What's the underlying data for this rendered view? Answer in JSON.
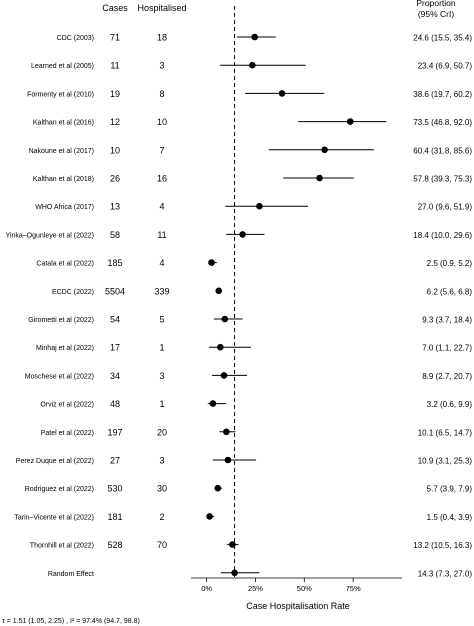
{
  "chart_data": {
    "type": "forest",
    "header": {
      "cases": "Cases",
      "hospitalised": "Hospitalised",
      "proportion_line1": "Proportion",
      "proportion_line2": "(95% CrI)"
    },
    "rows": [
      {
        "study": "CDC (2003)",
        "cases": "71",
        "hosp": "18",
        "est": 24.6,
        "lo": 15.5,
        "hi": 35.4,
        "label": "24.6 (15.5, 35.4)"
      },
      {
        "study": "Learned et al (2005)",
        "cases": "11",
        "hosp": "3",
        "est": 23.4,
        "lo": 6.9,
        "hi": 50.7,
        "label": "23.4 (6.9, 50.7)"
      },
      {
        "study": "Formenty et al (2010)",
        "cases": "19",
        "hosp": "8",
        "est": 38.6,
        "lo": 19.7,
        "hi": 60.2,
        "label": "38.6 (19.7, 60.2)"
      },
      {
        "study": "Kalthan et al (2016)",
        "cases": "12",
        "hosp": "10",
        "est": 73.5,
        "lo": 46.8,
        "hi": 92.0,
        "label": "73.5 (46.8, 92.0)"
      },
      {
        "study": "Nakoune et al (2017)",
        "cases": "10",
        "hosp": "7",
        "est": 60.4,
        "lo": 31.8,
        "hi": 85.6,
        "label": "60.4 (31.8, 85.6)"
      },
      {
        "study": "Kalthan et al (2018)",
        "cases": "26",
        "hosp": "16",
        "est": 57.8,
        "lo": 39.3,
        "hi": 75.3,
        "label": "57.8 (39.3, 75.3)"
      },
      {
        "study": "WHO Africa (2017)",
        "cases": "13",
        "hosp": "4",
        "est": 27.0,
        "lo": 9.6,
        "hi": 51.9,
        "label": "27.0 (9.6, 51.9)"
      },
      {
        "study": "Yinka–Ogunleye et al (2022)",
        "cases": "58",
        "hosp": "11",
        "est": 18.4,
        "lo": 10.0,
        "hi": 29.6,
        "label": "18.4 (10.0, 29.6)"
      },
      {
        "study": "Catala et al (2022)",
        "cases": "185",
        "hosp": "4",
        "est": 2.5,
        "lo": 0.9,
        "hi": 5.2,
        "label": "2.5 (0.9, 5.2)"
      },
      {
        "study": "ECDC (2022)",
        "cases": "5504",
        "hosp": "339",
        "est": 6.2,
        "lo": 5.6,
        "hi": 6.8,
        "label": "6.2 (5.6, 6.8)"
      },
      {
        "study": "Girometti et al (2022)",
        "cases": "54",
        "hosp": "5",
        "est": 9.3,
        "lo": 3.7,
        "hi": 18.4,
        "label": "9.3 (3.7, 18.4)"
      },
      {
        "study": "Minhaj et al (2022)",
        "cases": "17",
        "hosp": "1",
        "est": 7.0,
        "lo": 1.1,
        "hi": 22.7,
        "label": "7.0 (1.1, 22.7)"
      },
      {
        "study": "Moschese et al (2022)",
        "cases": "34",
        "hosp": "3",
        "est": 8.9,
        "lo": 2.7,
        "hi": 20.7,
        "label": "8.9 (2.7, 20.7)"
      },
      {
        "study": "Orviz et al (2022)",
        "cases": "48",
        "hosp": "1",
        "est": 3.2,
        "lo": 0.6,
        "hi": 9.9,
        "label": "3.2 (0.6, 9.9)"
      },
      {
        "study": "Patel et al (2022)",
        "cases": "197",
        "hosp": "20",
        "est": 10.1,
        "lo": 6.5,
        "hi": 14.7,
        "label": "10.1 (6.5, 14.7)"
      },
      {
        "study": "Perez Duque et al (2022)",
        "cases": "27",
        "hosp": "3",
        "est": 10.9,
        "lo": 3.1,
        "hi": 25.3,
        "label": "10.9 (3.1, 25.3)"
      },
      {
        "study": "Rodriguez et al (2022)",
        "cases": "530",
        "hosp": "30",
        "est": 5.7,
        "lo": 3.9,
        "hi": 7.9,
        "label": "5.7 (3.9, 7.9)"
      },
      {
        "study": "Tarin–Vicente et al (2022)",
        "cases": "181",
        "hosp": "2",
        "est": 1.5,
        "lo": 0.4,
        "hi": 3.9,
        "label": "1.5 (0.4, 3.9)"
      },
      {
        "study": "Thornhill et al (2022)",
        "cases": "528",
        "hosp": "70",
        "est": 13.2,
        "lo": 10.5,
        "hi": 16.3,
        "label": "13.2 (10.5, 16.3)"
      },
      {
        "study": "Random Effect",
        "cases": "",
        "hosp": "",
        "est": 14.3,
        "lo": 7.3,
        "hi": 27.0,
        "label": "14.3 (7.3, 27.0)",
        "summary": true
      }
    ],
    "reference_line": 14.3,
    "xlim": [
      -8,
      100
    ],
    "xticks": [
      0,
      25,
      50,
      75
    ],
    "xtick_labels": [
      "0%",
      "25%",
      "50%",
      "75%"
    ],
    "xlabel": "Case Hospitalisation Rate",
    "footnote": "τ = 1.51 (1.05, 2.25) , I² = 97.4% (94.7, 98.8)"
  }
}
